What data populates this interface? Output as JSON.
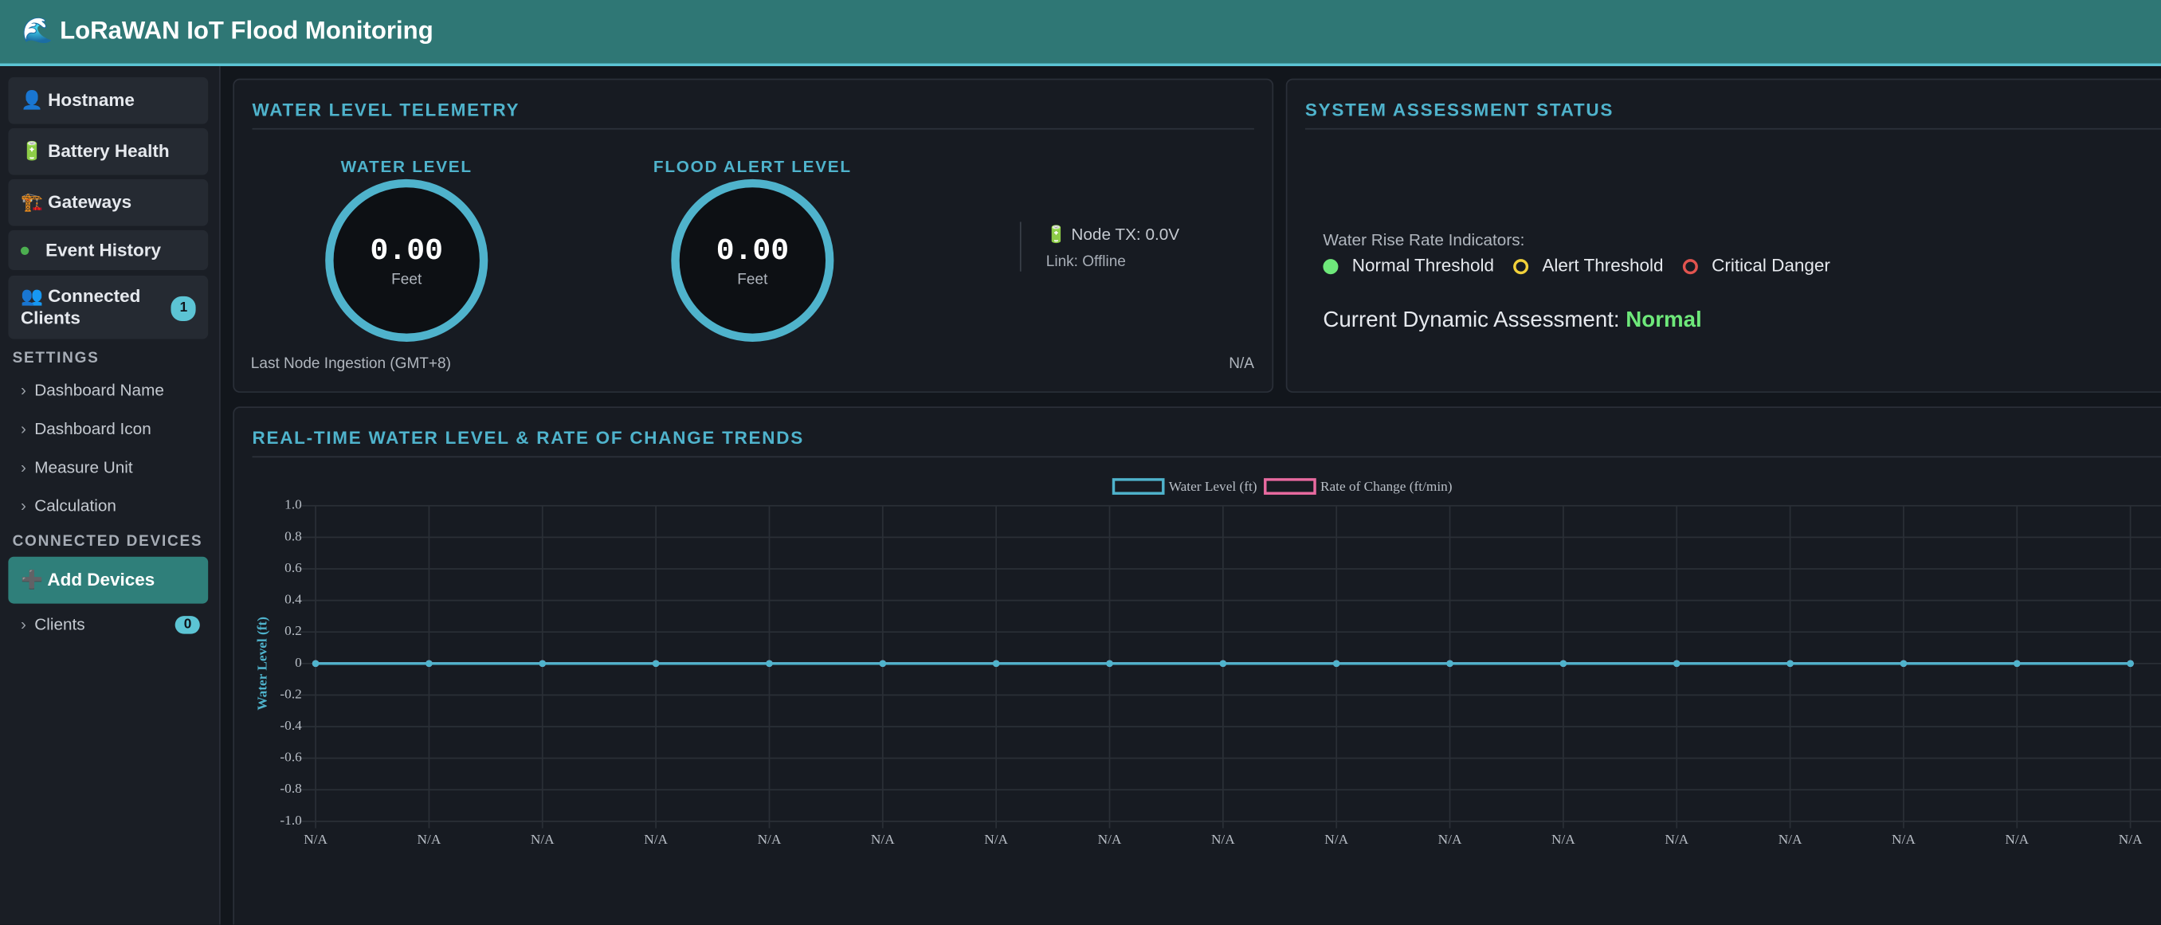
{
  "header": {
    "title": "🌊 LoRaWAN IoT Flood Monitoring"
  },
  "sidebar": {
    "nav": [
      "👤 Hostname",
      "🔋 Battery Health",
      "🏗️ Gateways",
      "Event History"
    ],
    "connected_clients": {
      "label": "👥 Connected Clients",
      "count": 1
    },
    "settings_title": "SETTINGS",
    "settings": [
      "Dashboard Name",
      "Dashboard Icon",
      "Measure Unit",
      "Calculation"
    ],
    "devices_title": "CONNECTED DEVICES",
    "add_devices": "➕ Add Devices",
    "clients": {
      "label": "Clients",
      "count": 0
    }
  },
  "telemetry": {
    "title": "WATER LEVEL TELEMETRY",
    "gauges": [
      {
        "label": "WATER LEVEL",
        "value": "0.00",
        "unit": "Feet"
      },
      {
        "label": "FLOOD ALERT LEVEL",
        "value": "0.00",
        "unit": "Feet"
      }
    ],
    "node_tx": "🔋 Node TX: 0.0V",
    "link": "Link: Offline",
    "ingestion_label": "Last Node Ingestion (GMT+8)",
    "ingestion_value": "N/A"
  },
  "assessment": {
    "title": "SYSTEM ASSESSMENT STATUS",
    "indicators_label": "Water Rise Rate Indicators:",
    "indicators": [
      {
        "name": "Normal Threshold",
        "color": "#6ee87a"
      },
      {
        "name": "Alert Threshold",
        "color": "#f2d13a"
      },
      {
        "name": "Critical Danger",
        "color": "#e2544f"
      }
    ],
    "current_label": "Current Dynamic Assessment:",
    "current_value": "Normal"
  },
  "chart_data": {
    "type": "line",
    "title": "REAL-TIME WATER LEVEL & RATE OF CHANGE TRENDS",
    "y_label": "Water Level (ft)",
    "categories": [
      "N/A",
      "N/A",
      "N/A",
      "N/A",
      "N/A",
      "N/A",
      "N/A",
      "N/A",
      "N/A",
      "N/A",
      "N/A",
      "N/A",
      "N/A",
      "N/A",
      "N/A",
      "N/A",
      "N/A"
    ],
    "series": [
      {
        "name": "Water Level (ft)",
        "color": "#4fb3cc",
        "values": [
          0,
          0,
          0,
          0,
          0,
          0,
          0,
          0,
          0,
          0,
          0,
          0,
          0,
          0,
          0,
          0,
          0
        ]
      },
      {
        "name": "Rate of Change (ft/min)",
        "color": "#e86aa0",
        "values": [
          0,
          0,
          0,
          0,
          0,
          0,
          0,
          0,
          0,
          0,
          0,
          0,
          0,
          0,
          0,
          0,
          0
        ]
      }
    ],
    "ylim": [
      -1,
      1
    ],
    "yticks": [
      {
        "value": 1,
        "label": "1.0"
      },
      0.8,
      0.6,
      0.4,
      0.2,
      0,
      -0.2,
      -0.4,
      -0.6,
      -0.8,
      {
        "value": -1,
        "label": "-1.0"
      }
    ],
    "grid": true
  }
}
